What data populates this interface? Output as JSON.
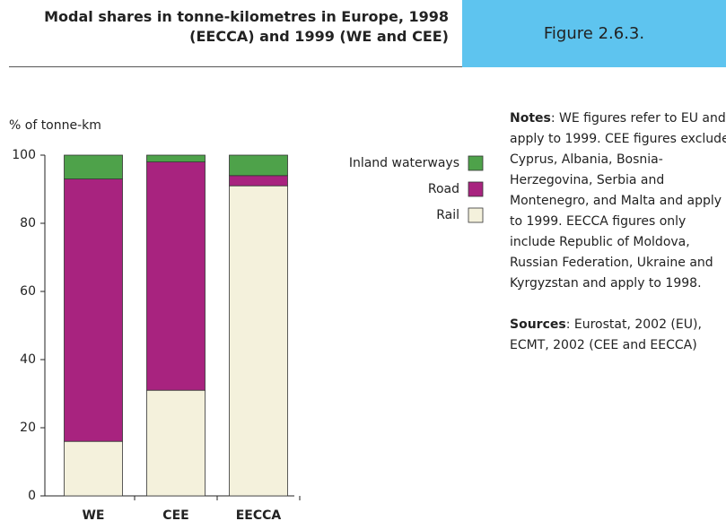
{
  "header": {
    "title_lines": [
      "Modal shares in tonne-kilometres in Europe, 1998",
      "(EECCA) and 1999 (WE and CEE)"
    ],
    "figure": "Figure 2.6.3."
  },
  "chart_data": {
    "type": "stacked_bar",
    "ylabel": "% of tonne-km",
    "categories": [
      "WE",
      "CEE",
      "EECCA"
    ],
    "series": [
      {
        "name": "Rail",
        "color": "#f4f1dc",
        "values": [
          16,
          31,
          91
        ]
      },
      {
        "name": "Road",
        "color": "#a8237f",
        "values": [
          77,
          67,
          3
        ]
      },
      {
        "name": "Inland waterways",
        "color": "#4ea24a",
        "values": [
          7,
          2,
          6
        ]
      }
    ],
    "ylim": [
      0,
      100
    ],
    "yticks": [
      0,
      20,
      40,
      60,
      80,
      100
    ]
  },
  "notes": [
    {
      "label": "Notes",
      "text": ": WE figures refer to EU and apply to 1999. CEE figures exclude Cyprus, Albania, Bosnia-Herzegovina, Serbia and Montenegro, and Malta and apply to 1999. EECCA figures only include Republic of Moldova, Russian Federation, Ukraine and Kyrgyzstan and apply to 1998."
    },
    {
      "label": "Sources",
      "text": ": Eurostat, 2002 (EU), ECMT, 2002 (CEE and EECCA)"
    }
  ]
}
